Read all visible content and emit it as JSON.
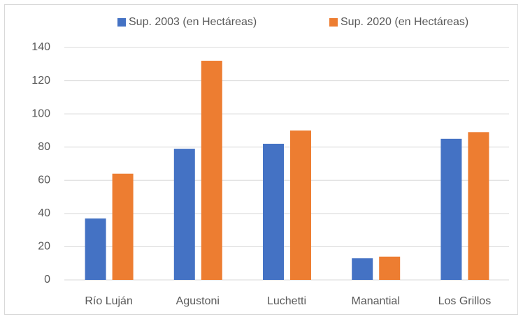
{
  "chart_data": {
    "type": "bar",
    "categories": [
      "Río Luján",
      "Agustoni",
      "Luchetti",
      "Manantial",
      "Los Grillos"
    ],
    "series": [
      {
        "name": "Sup. 2003 (en Hectáreas)",
        "color": "#4472c4",
        "values": [
          37,
          79,
          82,
          13,
          85
        ]
      },
      {
        "name": "Sup. 2020 (en Hectáreas)",
        "color": "#ed7d31",
        "values": [
          64,
          132,
          90,
          14,
          89
        ]
      }
    ],
    "ylim": [
      0,
      140
    ],
    "yticks": [
      0,
      20,
      40,
      60,
      80,
      100,
      120,
      140
    ],
    "grid": true,
    "legend": "top"
  }
}
